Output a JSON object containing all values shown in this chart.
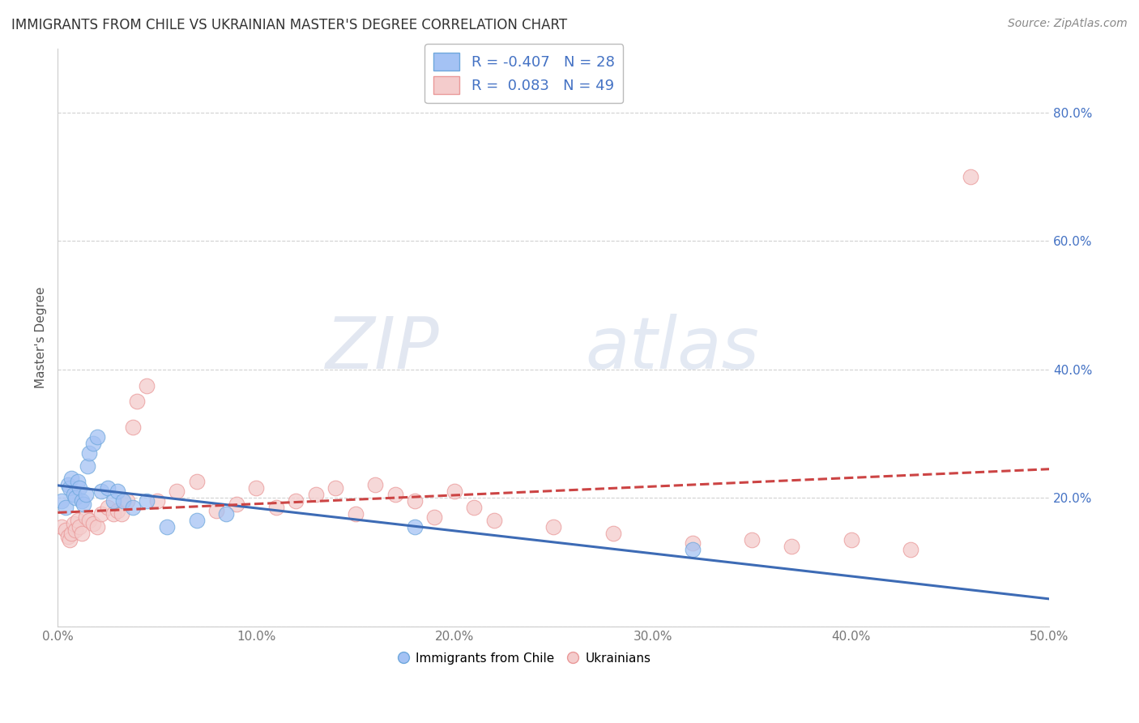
{
  "title": "IMMIGRANTS FROM CHILE VS UKRAINIAN MASTER'S DEGREE CORRELATION CHART",
  "source": "Source: ZipAtlas.com",
  "ylabel": "Master's Degree",
  "xlim": [
    0.0,
    0.5
  ],
  "ylim": [
    0.0,
    0.9
  ],
  "xticks": [
    0.0,
    0.1,
    0.2,
    0.3,
    0.4,
    0.5
  ],
  "xticklabels": [
    "0.0%",
    "10.0%",
    "20.0%",
    "30.0%",
    "40.0%",
    "50.0%"
  ],
  "yticks": [
    0.0,
    0.2,
    0.4,
    0.6,
    0.8
  ],
  "right_ytick_labels": [
    "20.0%",
    "40.0%",
    "60.0%",
    "80.0%"
  ],
  "blue_color": "#6fa8dc",
  "pink_color": "#ea9999",
  "blue_line_color": "#3d6bb5",
  "pink_line_color": "#cc4444",
  "blue_scatter_color": "#a4c2f4",
  "pink_scatter_color": "#f4cccc",
  "watermark_zip": "ZIP",
  "watermark_atlas": "atlas",
  "grid_color": "#cccccc",
  "background_color": "#ffffff",
  "title_fontsize": 12,
  "axis_label_fontsize": 11,
  "tick_fontsize": 11,
  "source_fontsize": 10,
  "blue_x": [
    0.002,
    0.004,
    0.005,
    0.006,
    0.007,
    0.008,
    0.009,
    0.01,
    0.011,
    0.012,
    0.013,
    0.014,
    0.015,
    0.016,
    0.018,
    0.02,
    0.022,
    0.025,
    0.028,
    0.03,
    0.033,
    0.038,
    0.045,
    0.055,
    0.07,
    0.085,
    0.18,
    0.32
  ],
  "blue_y": [
    0.195,
    0.185,
    0.22,
    0.215,
    0.23,
    0.205,
    0.2,
    0.225,
    0.215,
    0.195,
    0.19,
    0.205,
    0.25,
    0.27,
    0.285,
    0.295,
    0.21,
    0.215,
    0.195,
    0.21,
    0.195,
    0.185,
    0.195,
    0.155,
    0.165,
    0.175,
    0.155,
    0.12
  ],
  "pink_x": [
    0.002,
    0.004,
    0.005,
    0.006,
    0.007,
    0.008,
    0.009,
    0.01,
    0.011,
    0.012,
    0.014,
    0.016,
    0.018,
    0.02,
    0.022,
    0.025,
    0.028,
    0.03,
    0.032,
    0.035,
    0.038,
    0.04,
    0.045,
    0.05,
    0.06,
    0.07,
    0.08,
    0.09,
    0.1,
    0.11,
    0.12,
    0.13,
    0.14,
    0.15,
    0.16,
    0.17,
    0.18,
    0.19,
    0.2,
    0.21,
    0.22,
    0.25,
    0.28,
    0.32,
    0.35,
    0.37,
    0.4,
    0.43,
    0.46
  ],
  "pink_y": [
    0.155,
    0.15,
    0.14,
    0.135,
    0.145,
    0.16,
    0.15,
    0.165,
    0.155,
    0.145,
    0.17,
    0.165,
    0.16,
    0.155,
    0.175,
    0.185,
    0.175,
    0.18,
    0.175,
    0.195,
    0.31,
    0.35,
    0.375,
    0.195,
    0.21,
    0.225,
    0.18,
    0.19,
    0.215,
    0.185,
    0.195,
    0.205,
    0.215,
    0.175,
    0.22,
    0.205,
    0.195,
    0.17,
    0.21,
    0.185,
    0.165,
    0.155,
    0.145,
    0.13,
    0.135,
    0.125,
    0.135,
    0.12,
    0.7
  ]
}
